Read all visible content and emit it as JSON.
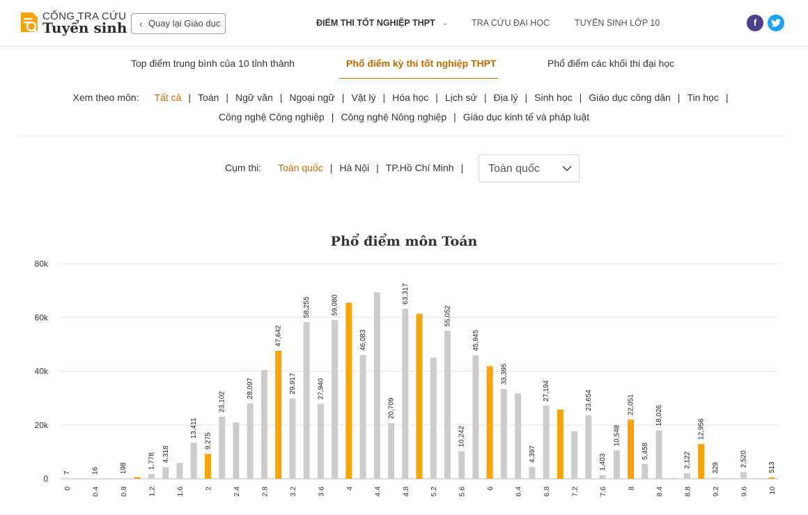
{
  "header": {
    "logo_top": "CỔNG TRA CỨU",
    "logo_bottom": "Tuyển sinh",
    "back_label": "Quay lại Giáo dục",
    "nav": [
      {
        "label": "ĐIỂM THI TỐT NGHIỆP THPT",
        "bold": true,
        "dropdown": true
      },
      {
        "label": "TRA CỨU ĐẠI HỌC",
        "bold": false,
        "dropdown": false
      },
      {
        "label": "TUYỂN SINH LỚP 10",
        "bold": false,
        "dropdown": false
      }
    ],
    "social": [
      {
        "icon": "facebook-icon",
        "glyph": "f",
        "color": "#4b3f8a"
      },
      {
        "icon": "twitter-icon",
        "glyph": "t",
        "color": "#1da1f2"
      }
    ]
  },
  "tabs": [
    {
      "label": "Top điểm trung bình của 10 tỉnh thành",
      "active": false
    },
    {
      "label": "Phổ điểm kỳ thi tốt nghiệp THPT",
      "active": true
    },
    {
      "label": "Phổ điểm các khối thi đại học",
      "active": false
    }
  ],
  "subject_filter": {
    "label": "Xem theo môn:",
    "row1": [
      "Tất cả",
      "Toán",
      "Ngữ văn",
      "Ngoại ngữ",
      "Vật lý",
      "Hóa học",
      "Lịch sử",
      "Địa lý",
      "Sinh học",
      "Giáo dục công dân",
      "Tin học"
    ],
    "row2": [
      "Công nghệ Công nghiệp",
      "Công nghệ Nông nghiệp",
      "Giáo dục kinh tế và pháp luật"
    ],
    "active": "Tất cả"
  },
  "region_filter": {
    "label": "Cụm thi:",
    "items": [
      "Toàn quốc",
      "Hà Nội",
      "TP.Hồ Chí Minh"
    ],
    "active": "Toàn quốc",
    "select_value": "Toàn quốc"
  },
  "colors": {
    "accent": "#c26a00",
    "bar_gray": "#cccccc",
    "bar_orange": "#f5a40c"
  },
  "chart_data": {
    "type": "bar",
    "title": "Phổ điểm môn Toán",
    "xlabel": "",
    "ylabel": "",
    "ylim": [
      0,
      80000
    ],
    "y_ticks": [
      "0",
      "20k",
      "40k",
      "60k",
      "80k"
    ],
    "y_tick_values": [
      0,
      20000,
      40000,
      60000,
      80000
    ],
    "grid": true,
    "categories": [
      "0",
      "0.2",
      "0.4",
      "0.6",
      "0.8",
      "1",
      "1.2",
      "1.4",
      "1.6",
      "1.8",
      "2",
      "2.2",
      "2.4",
      "2.6",
      "2.8",
      "3",
      "3.2",
      "3.4",
      "3.6",
      "3.8",
      "4",
      "4.2",
      "4.4",
      "4.6",
      "4.8",
      "5",
      "5.2",
      "5.4",
      "5.6",
      "5.8",
      "6",
      "6.2",
      "6.4",
      "6.6",
      "6.8",
      "7",
      "7.2",
      "7.4",
      "7.6",
      "7.8",
      "8",
      "8.2",
      "8.4",
      "8.6",
      "8.8",
      "9",
      "9.2",
      "9.4",
      "9.6",
      "9.8",
      "10"
    ],
    "shown_x_ticks": [
      "0",
      "0.4",
      "0.8",
      "1.2",
      "1.6",
      "2",
      "2.4",
      "2.8",
      "3.2",
      "3.6",
      "4",
      "4.4",
      "4.8",
      "5.2",
      "5.6",
      "6",
      "6.4",
      "6.8",
      "7.2",
      "7.6",
      "8",
      "8.4",
      "8.8",
      "9.2",
      "9.6",
      "10"
    ],
    "values": [
      7,
      20,
      16,
      80,
      198,
      600,
      1778,
      4318,
      5900,
      13411,
      9275,
      23102,
      21000,
      28097,
      40500,
      47642,
      29917,
      58255,
      27940,
      59080,
      65500,
      46083,
      69400,
      20709,
      63317,
      61400,
      45000,
      55052,
      10242,
      45945,
      41900,
      33395,
      31800,
      4397,
      27194,
      25800,
      17700,
      23654,
      1403,
      10548,
      22051,
      5458,
      18026,
      300,
      2122,
      12956,
      329,
      150,
      2520,
      100,
      513
    ],
    "highlighted": [
      "1",
      "2",
      "3",
      "4",
      "5",
      "6",
      "7",
      "8",
      "9",
      "10"
    ],
    "labels_shown": {
      "0": "7",
      "0.4": "16",
      "0.8": "198",
      "1.2": "1,778",
      "1.4": "4,318",
      "1.8": "13,411",
      "2": "9,275",
      "2.2": "23,102",
      "2.6": "28,097",
      "3": "47,642",
      "3.2": "29,917",
      "3.4": "58,255",
      "3.6": "27,940",
      "3.8": "59,080",
      "4.2": "46,083",
      "4.6": "20,709",
      "4.8": "63,317",
      "5.4": "55,052",
      "5.6": "10,242",
      "5.8": "45,945",
      "6.2": "33,395",
      "6.6": "4,397",
      "6.8": "27,194",
      "7.4": "23,654",
      "7.6": "1,403",
      "7.8": "10,548",
      "8": "22,051",
      "8.2": "5,458",
      "8.4": "18,026",
      "8.8": "2,122",
      "9": "12,956",
      "9.2": "329",
      "9.6": "2,520",
      "10": "513"
    }
  }
}
